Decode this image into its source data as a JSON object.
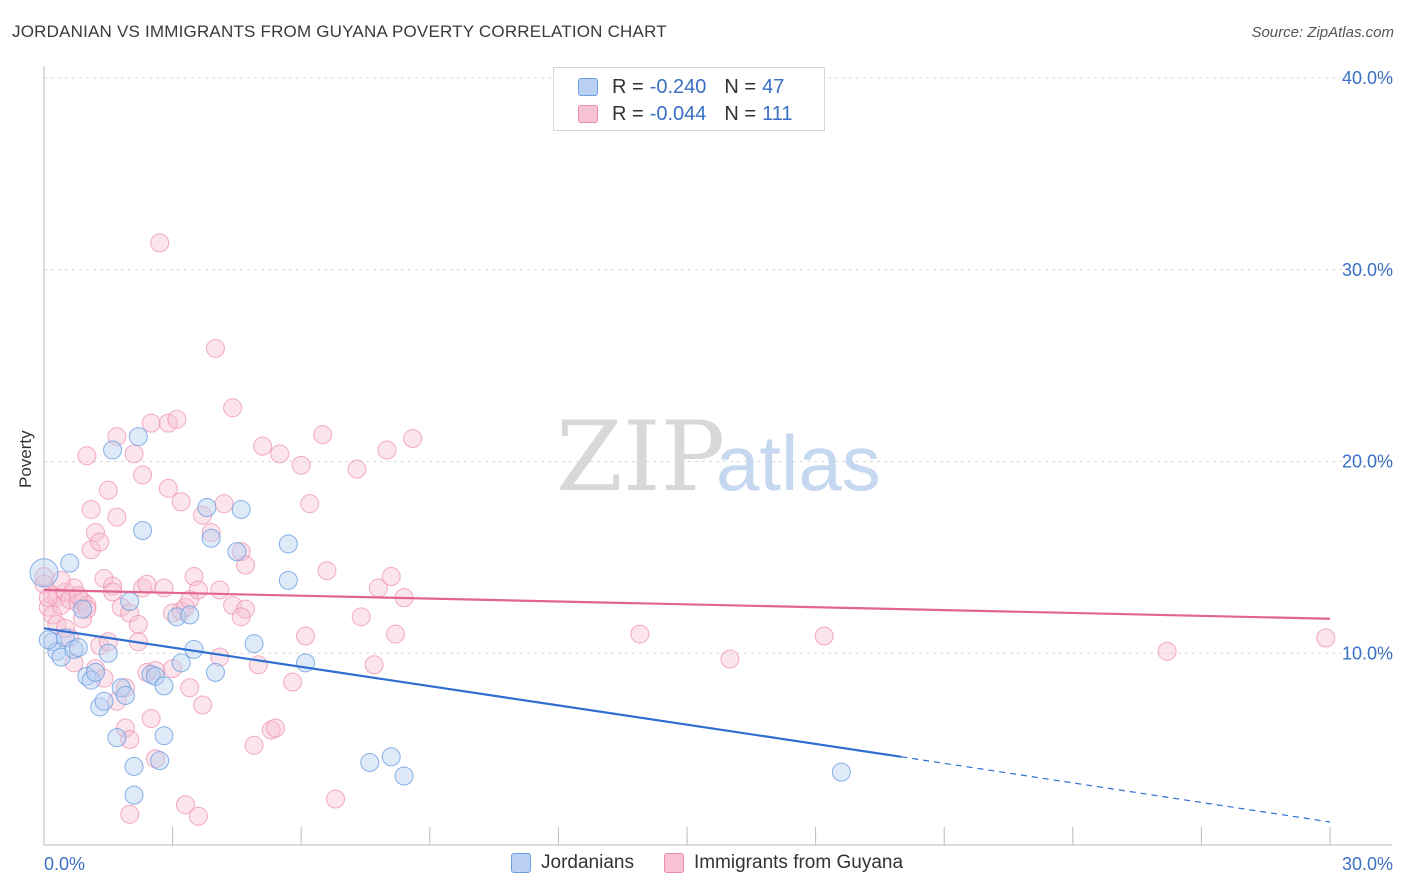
{
  "header": {
    "title": "JORDANIAN VS IMMIGRANTS FROM GUYANA POVERTY CORRELATION CHART",
    "source": "Source: ZipAtlas.com"
  },
  "legend": {
    "rows": [
      {
        "r_label": "R =",
        "r_value": "-0.240",
        "n_label": "N =",
        "n_value": "47"
      },
      {
        "r_label": "R =",
        "r_value": "-0.044",
        "n_label": "N =",
        "n_value": "111"
      }
    ],
    "bottom": [
      "Jordanians",
      "Immigrants from Guyana"
    ]
  },
  "watermark": {
    "zip": "ZIP",
    "atlas": "atlas"
  },
  "colors": {
    "blue": "#6c9ee0",
    "blue_fill": "#b9d0f2",
    "blue_line": "#2e6fd1",
    "pink": "#ee8aab",
    "pink_fill": "#f7c3d4",
    "pink_line": "#e2658f",
    "tick_text": "#3a6fc4",
    "grid": "#d9d9d9"
  },
  "chart_data": {
    "type": "scatter",
    "title": "JORDANIAN VS IMMIGRANTS FROM GUYANA POVERTY CORRELATION CHART",
    "xlabel": "",
    "ylabel": "Poverty",
    "xlim": [
      0,
      30
    ],
    "ylim": [
      0,
      40
    ],
    "x_tick_labels": [
      "0.0%",
      "30.0%"
    ],
    "y_ticks": [
      10,
      20,
      30,
      40
    ],
    "y_tick_labels": [
      "10.0%",
      "20.0%",
      "30.0%",
      "40.0%"
    ],
    "grid": true,
    "series": [
      {
        "name": "Jordanians",
        "color": "#6c9ee0",
        "trend": {
          "x0": 0,
          "y0": 11.3,
          "x1": 20,
          "y1": 4.6,
          "dash_to_x": 30,
          "dash_to_y": 1.2
        },
        "points": [
          [
            0.0,
            14.2
          ],
          [
            0.2,
            10.6
          ],
          [
            0.3,
            10.1
          ],
          [
            0.4,
            9.8
          ],
          [
            0.5,
            10.8
          ],
          [
            0.6,
            14.7
          ],
          [
            0.7,
            10.2
          ],
          [
            0.8,
            10.3
          ],
          [
            0.9,
            12.3
          ],
          [
            1.0,
            8.8
          ],
          [
            1.1,
            8.6
          ],
          [
            1.2,
            9.0
          ],
          [
            1.3,
            7.2
          ],
          [
            1.4,
            7.5
          ],
          [
            1.5,
            10.0
          ],
          [
            1.6,
            20.6
          ],
          [
            1.7,
            5.6
          ],
          [
            1.8,
            8.2
          ],
          [
            1.9,
            7.8
          ],
          [
            2.0,
            12.7
          ],
          [
            2.1,
            4.1
          ],
          [
            2.1,
            2.6
          ],
          [
            2.2,
            21.3
          ],
          [
            2.3,
            16.4
          ],
          [
            2.5,
            8.9
          ],
          [
            2.6,
            8.8
          ],
          [
            2.7,
            4.4
          ],
          [
            2.8,
            8.3
          ],
          [
            2.8,
            5.7
          ],
          [
            3.1,
            11.9
          ],
          [
            3.2,
            9.5
          ],
          [
            3.4,
            12.0
          ],
          [
            3.5,
            10.2
          ],
          [
            3.8,
            17.6
          ],
          [
            3.9,
            16.0
          ],
          [
            4.0,
            9.0
          ],
          [
            4.5,
            15.3
          ],
          [
            4.6,
            17.5
          ],
          [
            4.9,
            10.5
          ],
          [
            5.7,
            15.7
          ],
          [
            5.7,
            13.8
          ],
          [
            6.1,
            9.5
          ],
          [
            7.6,
            4.3
          ],
          [
            8.1,
            4.6
          ],
          [
            8.4,
            3.6
          ],
          [
            18.6,
            3.8
          ],
          [
            0.1,
            10.7
          ]
        ]
      },
      {
        "name": "Immigrants from Guyana",
        "color": "#ee8aab",
        "trend": {
          "x0": 0,
          "y0": 13.3,
          "x1": 30,
          "y1": 11.8
        },
        "points": [
          [
            0.0,
            13.6
          ],
          [
            0.1,
            12.4
          ],
          [
            0.2,
            12.0
          ],
          [
            0.2,
            13.0
          ],
          [
            0.3,
            11.5
          ],
          [
            0.3,
            12.9
          ],
          [
            0.4,
            12.5
          ],
          [
            0.5,
            13.2
          ],
          [
            0.6,
            12.8
          ],
          [
            0.6,
            10.8
          ],
          [
            0.7,
            13.4
          ],
          [
            0.7,
            9.5
          ],
          [
            0.8,
            12.6
          ],
          [
            0.9,
            11.8
          ],
          [
            0.9,
            12.7
          ],
          [
            1.0,
            20.3
          ],
          [
            1.0,
            12.5
          ],
          [
            1.1,
            15.4
          ],
          [
            1.1,
            17.5
          ],
          [
            1.2,
            16.3
          ],
          [
            1.2,
            9.2
          ],
          [
            1.3,
            15.8
          ],
          [
            1.3,
            10.4
          ],
          [
            1.4,
            8.7
          ],
          [
            1.4,
            13.9
          ],
          [
            1.5,
            18.5
          ],
          [
            1.5,
            10.6
          ],
          [
            1.6,
            13.5
          ],
          [
            1.7,
            17.1
          ],
          [
            1.7,
            7.5
          ],
          [
            1.7,
            21.3
          ],
          [
            1.8,
            12.4
          ],
          [
            1.9,
            8.2
          ],
          [
            1.9,
            6.1
          ],
          [
            2.0,
            5.5
          ],
          [
            2.0,
            1.6
          ],
          [
            2.0,
            12.1
          ],
          [
            2.1,
            20.4
          ],
          [
            2.2,
            11.5
          ],
          [
            2.3,
            13.4
          ],
          [
            2.3,
            19.3
          ],
          [
            2.4,
            9.0
          ],
          [
            2.4,
            13.6
          ],
          [
            2.5,
            22.0
          ],
          [
            2.5,
            6.6
          ],
          [
            2.6,
            4.5
          ],
          [
            2.6,
            9.1
          ],
          [
            2.7,
            31.4
          ],
          [
            2.8,
            13.4
          ],
          [
            2.9,
            18.6
          ],
          [
            2.9,
            22.0
          ],
          [
            3.0,
            12.1
          ],
          [
            3.0,
            9.2
          ],
          [
            3.1,
            22.2
          ],
          [
            3.2,
            17.9
          ],
          [
            3.2,
            12.2
          ],
          [
            3.3,
            2.1
          ],
          [
            3.3,
            12.4
          ],
          [
            3.4,
            8.2
          ],
          [
            3.4,
            12.8
          ],
          [
            3.5,
            14.0
          ],
          [
            3.6,
            1.5
          ],
          [
            3.7,
            17.2
          ],
          [
            3.7,
            7.3
          ],
          [
            3.9,
            16.3
          ],
          [
            4.0,
            25.9
          ],
          [
            4.1,
            13.3
          ],
          [
            4.1,
            9.8
          ],
          [
            4.2,
            17.8
          ],
          [
            4.4,
            22.8
          ],
          [
            4.4,
            12.5
          ],
          [
            4.6,
            15.3
          ],
          [
            4.7,
            14.6
          ],
          [
            4.7,
            12.3
          ],
          [
            4.9,
            5.2
          ],
          [
            5.0,
            9.4
          ],
          [
            5.1,
            20.8
          ],
          [
            5.3,
            6.0
          ],
          [
            5.4,
            6.1
          ],
          [
            5.5,
            20.4
          ],
          [
            5.8,
            8.5
          ],
          [
            6.0,
            19.8
          ],
          [
            6.1,
            10.9
          ],
          [
            6.2,
            17.8
          ],
          [
            6.5,
            21.4
          ],
          [
            6.6,
            14.3
          ],
          [
            6.8,
            2.4
          ],
          [
            7.3,
            19.6
          ],
          [
            7.4,
            11.9
          ],
          [
            7.7,
            9.4
          ],
          [
            7.8,
            13.4
          ],
          [
            8.0,
            20.6
          ],
          [
            8.1,
            14.0
          ],
          [
            8.2,
            11.0
          ],
          [
            8.4,
            12.9
          ],
          [
            8.6,
            21.2
          ],
          [
            13.9,
            11.0
          ],
          [
            16.0,
            9.7
          ],
          [
            18.2,
            10.9
          ],
          [
            26.2,
            10.1
          ],
          [
            29.9,
            10.8
          ],
          [
            0.0,
            14.0
          ],
          [
            0.1,
            12.9
          ],
          [
            0.5,
            11.3
          ],
          [
            0.8,
            13.0
          ],
          [
            1.0,
            12.3
          ],
          [
            1.6,
            13.2
          ],
          [
            2.2,
            10.6
          ],
          [
            3.6,
            13.3
          ],
          [
            4.6,
            11.9
          ],
          [
            0.4,
            13.8
          ]
        ]
      }
    ]
  }
}
